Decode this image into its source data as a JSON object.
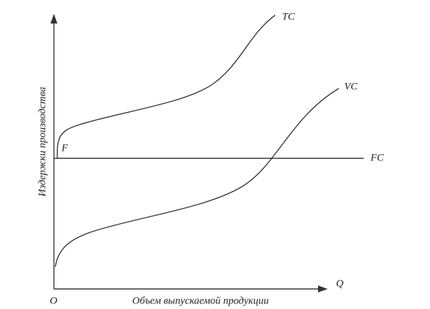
{
  "axes": {
    "x_label": "Объем выпускаемой продукции",
    "y_label": "Издержки производства",
    "origin": "O",
    "x_symbol": "Q"
  },
  "curves": {
    "tc": "TC",
    "vc": "VC",
    "fc": "FC",
    "f_point": "F"
  }
}
